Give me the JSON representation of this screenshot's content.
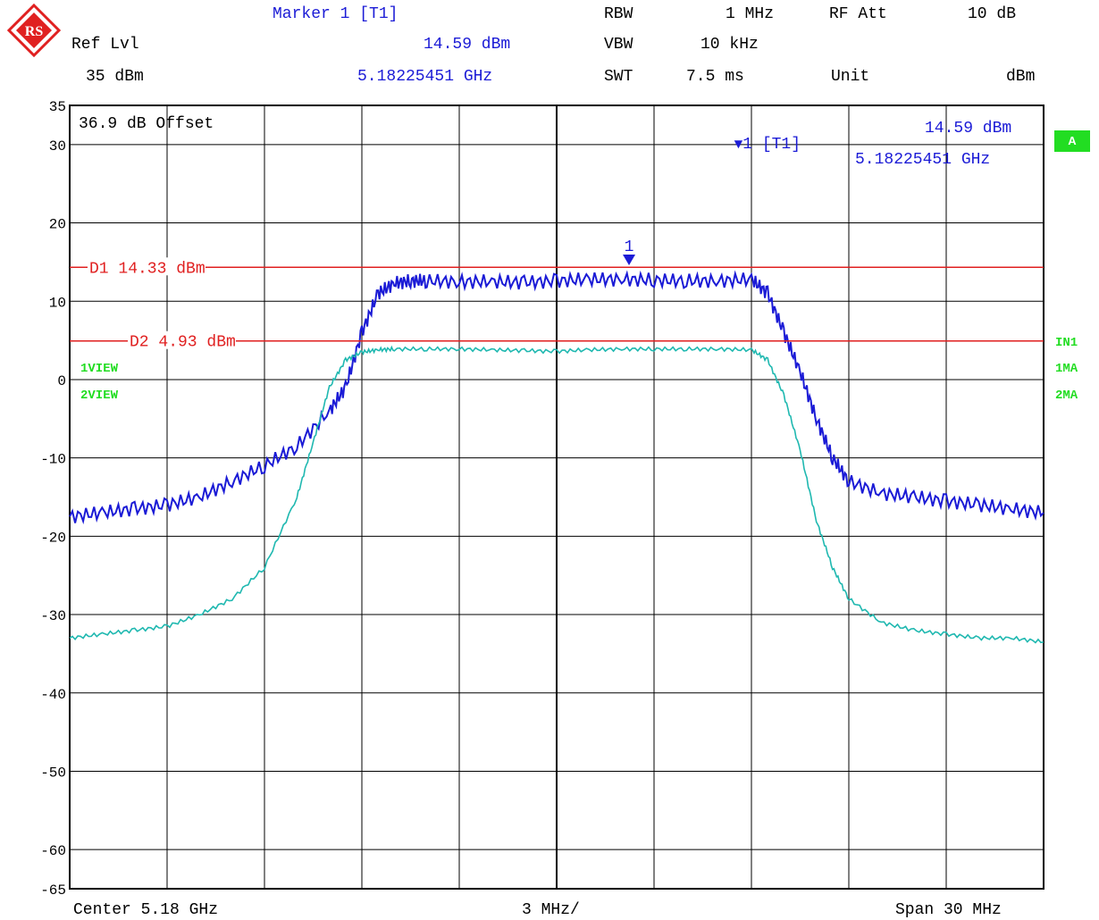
{
  "header": {
    "marker_title": "Marker 1 [T1]",
    "rbw_label": "RBW",
    "rbw_value": "1 MHz",
    "rfatt_label": "RF Att",
    "rfatt_value": "10 dB",
    "reflvl_label": "Ref Lvl",
    "marker_level": "14.59 dBm",
    "vbw_label": "VBW",
    "vbw_value": "10 kHz",
    "reflvl_value": "35 dBm",
    "marker_freq": "5.18225451 GHz",
    "swt_label": "SWT",
    "swt_value": "7.5 ms",
    "unit_label": "Unit",
    "unit_value": "dBm"
  },
  "plot": {
    "offset_text": "36.9 dB Offset",
    "marker_readout_id": "1 [T1]",
    "marker_readout_level": "14.59 dBm",
    "marker_readout_freq": "5.18225451 GHz",
    "marker_number": "1",
    "view1": "1VIEW",
    "view2": "2VIEW",
    "side_a": "A",
    "side_in1": "IN1",
    "side_1ma": "1MA",
    "side_2ma": "2MA"
  },
  "footer": {
    "center": "Center 5.18 GHz",
    "per_div": "3 MHz/",
    "span": "Span 30 MHz"
  },
  "colors": {
    "trace1": "#1b1bd6",
    "trace2": "#1fb8b0",
    "lines": "#e02020",
    "green": "#22dd22"
  },
  "chart_data": {
    "type": "line",
    "xlabel": "",
    "ylabel": "",
    "x_range_mhz": [
      -15,
      15
    ],
    "ylim": [
      -65,
      35
    ],
    "ytick_labels": [
      "35",
      "30",
      "20",
      "10",
      "0",
      "-10",
      "-20",
      "-30",
      "-40",
      "-50",
      "-60",
      "-65"
    ],
    "yticks": [
      35,
      30,
      20,
      10,
      0,
      -10,
      -20,
      -30,
      -40,
      -50,
      -60,
      -65
    ],
    "grid": true,
    "lines": [
      {
        "name": "D1",
        "label": "D1 14.33 dBm",
        "value": 14.33
      },
      {
        "name": "D2",
        "label": "D2 4.93 dBm",
        "value": 4.93
      }
    ],
    "marker": {
      "label": "1",
      "freq_mhz": 2.23,
      "level": 14.59
    },
    "series": [
      {
        "name": "1VIEW",
        "x": [
          -15,
          -14,
          -13,
          -12,
          -11,
          -10,
          -9,
          -8,
          -7,
          -6.5,
          -6,
          -5.5,
          -5,
          -4.5,
          -4,
          -3,
          -2,
          -1,
          0,
          1,
          2,
          3,
          4,
          5,
          6,
          6.5,
          7,
          7.5,
          8,
          8.5,
          9,
          10,
          11,
          12,
          13,
          14,
          15
        ],
        "y": [
          -17.5,
          -17,
          -16.5,
          -16,
          -15,
          -13,
          -11,
          -8.5,
          -4,
          -1,
          6,
          11,
          12.3,
          12.6,
          12.6,
          12.5,
          12.5,
          12.4,
          12.6,
          12.8,
          12.8,
          12.7,
          12.6,
          12.6,
          12.8,
          11,
          6,
          1,
          -5,
          -10,
          -13,
          -14.5,
          -15,
          -15.5,
          -16,
          -16.5,
          -17
        ]
      },
      {
        "name": "2VIEW",
        "x": [
          -15,
          -14,
          -13,
          -12,
          -11,
          -10,
          -9,
          -8,
          -7.5,
          -7,
          -6.5,
          -6,
          -5.5,
          -5,
          -4,
          -3,
          -2,
          -1,
          0,
          1,
          2,
          3,
          4,
          5,
          6,
          6.5,
          7,
          7.5,
          8,
          8.5,
          9,
          10,
          11,
          12,
          13,
          14,
          15
        ],
        "y": [
          -33,
          -32.5,
          -32,
          -31.5,
          -30,
          -28,
          -24,
          -15,
          -8,
          -1,
          2.5,
          3.5,
          3.8,
          3.9,
          3.9,
          3.9,
          3.8,
          3.7,
          3.6,
          3.8,
          3.9,
          3.9,
          3.9,
          3.9,
          3.8,
          2.5,
          -2,
          -9,
          -18,
          -24,
          -28,
          -31,
          -32,
          -32.5,
          -33,
          -33,
          -33.5
        ]
      }
    ]
  }
}
